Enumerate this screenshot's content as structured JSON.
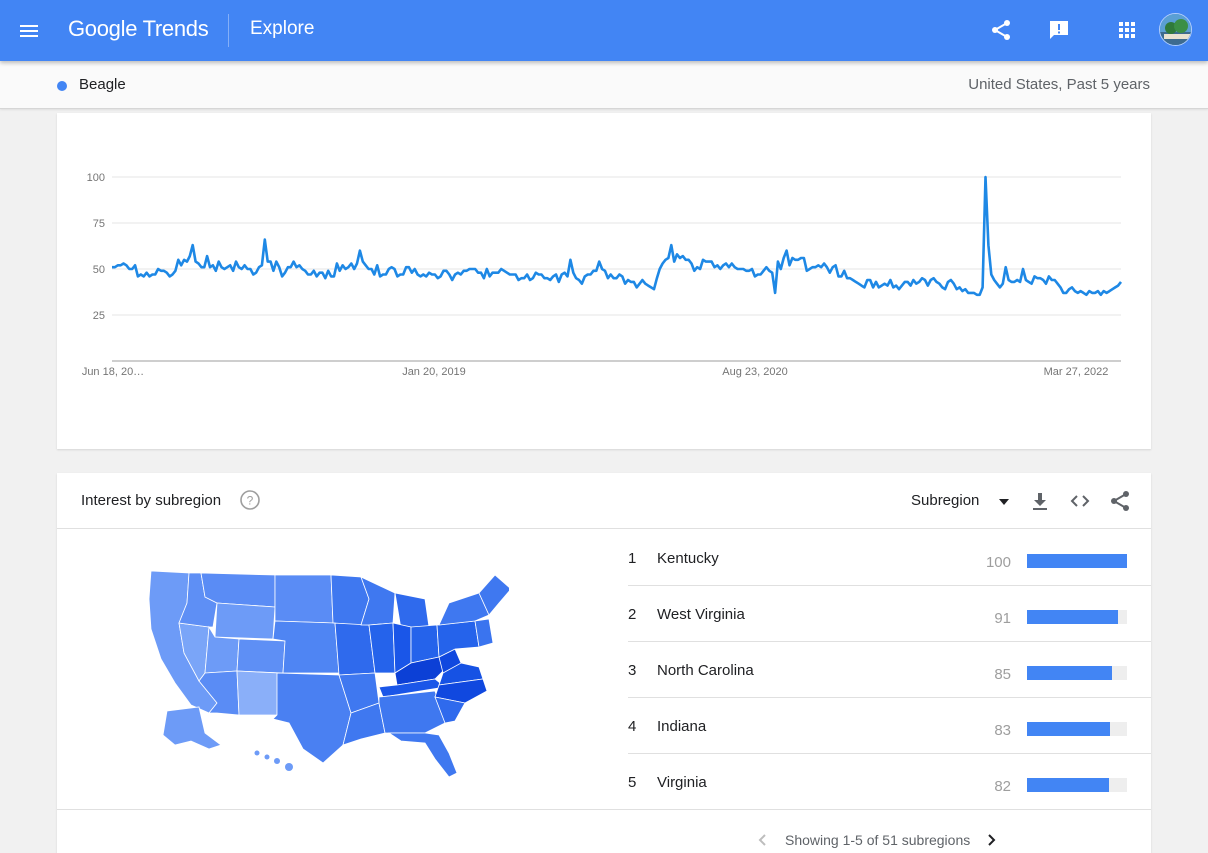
{
  "header": {
    "logo_google": "Google",
    "logo_trends": "Trends",
    "page_title": "Explore",
    "colors": {
      "appbar": "#4285f4",
      "accent": "#1e88e5"
    }
  },
  "subbar": {
    "term": "Beagle",
    "scope": "United States, Past 5 years"
  },
  "chart_data": {
    "type": "line",
    "title": "",
    "xlabel": "",
    "ylabel": "",
    "ylim": [
      0,
      100
    ],
    "y_ticks": [
      "100",
      "75",
      "50",
      "25"
    ],
    "x_tick_labels": [
      "Jun 18, 20…",
      "Jan 20, 2019",
      "Aug 23, 2020",
      "Mar 27, 2022"
    ],
    "grid": true,
    "series": [
      {
        "color": "#1e88e5",
        "values": [
          51,
          51,
          52,
          52,
          53,
          52,
          50,
          50,
          52,
          46,
          47,
          46,
          48,
          46,
          47,
          47,
          50,
          49,
          49,
          48,
          46,
          47,
          49,
          55,
          52,
          55,
          54,
          57,
          63,
          54,
          53,
          51,
          51,
          57,
          51,
          52,
          49,
          54,
          51,
          50,
          51,
          52,
          49,
          54,
          51,
          50,
          52,
          50,
          50,
          47,
          48,
          51,
          52,
          66,
          54,
          54,
          49,
          54,
          51,
          46,
          48,
          51,
          51,
          54,
          51,
          52,
          50,
          49,
          47,
          47,
          49,
          46,
          48,
          48,
          45,
          49,
          46,
          46,
          53,
          49,
          52,
          50,
          51,
          53,
          50,
          53,
          60,
          54,
          52,
          50,
          50,
          47,
          52,
          46,
          47,
          47,
          50,
          51,
          50,
          46,
          47,
          47,
          51,
          51,
          48,
          50,
          47,
          46,
          47,
          46,
          48,
          47,
          47,
          45,
          46,
          49,
          49,
          47,
          44,
          47,
          48,
          47,
          49,
          49,
          50,
          50,
          50,
          48,
          48,
          45,
          50,
          46,
          48,
          48,
          48,
          50,
          49,
          48,
          47,
          47,
          47,
          44,
          45,
          45,
          47,
          44,
          45,
          48,
          47,
          47,
          45,
          45,
          44,
          46,
          47,
          43,
          47,
          48,
          46,
          55,
          48,
          45,
          44,
          42,
          46,
          47,
          47,
          49,
          49,
          54,
          50,
          49,
          45,
          47,
          45,
          45,
          47,
          46,
          42,
          44,
          43,
          43,
          40,
          42,
          44,
          42,
          41,
          40,
          39,
          45,
          50,
          53,
          55,
          56,
          63,
          54,
          58,
          56,
          57,
          55,
          55,
          53,
          49,
          51,
          50,
          55,
          54,
          54,
          54,
          51,
          52,
          50,
          52,
          53,
          51,
          53,
          51,
          50,
          50,
          50,
          49,
          49,
          50,
          46,
          47,
          47,
          49,
          51,
          49,
          48,
          37,
          54,
          50,
          56,
          60,
          52,
          56,
          55,
          55,
          56,
          56,
          49,
          50,
          51,
          51,
          52,
          51,
          53,
          51,
          48,
          51,
          52,
          46,
          46,
          49,
          45,
          45,
          44,
          43,
          42,
          41,
          40,
          44,
          44,
          40,
          43,
          40,
          41,
          42,
          41,
          44,
          40,
          41,
          39,
          41,
          43,
          43,
          41,
          44,
          42,
          43,
          45,
          44,
          41,
          44,
          45,
          43,
          42,
          40,
          39,
          43,
          44,
          42,
          39,
          40,
          38,
          39,
          37,
          37,
          37,
          36,
          36,
          40,
          100,
          63,
          47,
          44,
          42,
          40,
          42,
          51,
          44,
          43,
          43,
          44,
          43,
          50,
          44,
          43,
          42,
          46,
          45,
          45,
          44,
          42,
          46,
          44,
          44,
          42,
          40,
          37,
          37,
          39,
          40,
          38,
          37,
          38,
          37,
          36,
          38,
          37,
          37,
          38,
          36,
          38,
          37,
          38,
          39,
          40,
          41,
          43
        ]
      }
    ]
  },
  "subregion": {
    "title": "Interest by subregion",
    "selector": "Subregion",
    "rows": [
      {
        "rank": "1",
        "name": "Kentucky",
        "value": "100",
        "level": 100
      },
      {
        "rank": "2",
        "name": "West Virginia",
        "value": "91",
        "level": 91
      },
      {
        "rank": "3",
        "name": "North Carolina",
        "value": "85",
        "level": 85
      },
      {
        "rank": "4",
        "name": "Indiana",
        "value": "83",
        "level": 83
      },
      {
        "rank": "5",
        "name": "Virginia",
        "value": "82",
        "level": 82
      }
    ],
    "pager": "Showing 1-5 of 51 subregions",
    "map_colors": {
      "light": "#6d9bf7",
      "mid": "#3f78f0",
      "dark": "#1a56e8",
      "darkest": "#0c40d6"
    }
  },
  "icons": {
    "menu": "menu-icon",
    "share": "share-icon",
    "feedback": "feedback-icon",
    "apps": "apps-icon",
    "help": "help-icon",
    "download": "download-icon",
    "embed": "embed-icon",
    "prev": "chevron-left-icon",
    "next": "chevron-right-icon"
  }
}
